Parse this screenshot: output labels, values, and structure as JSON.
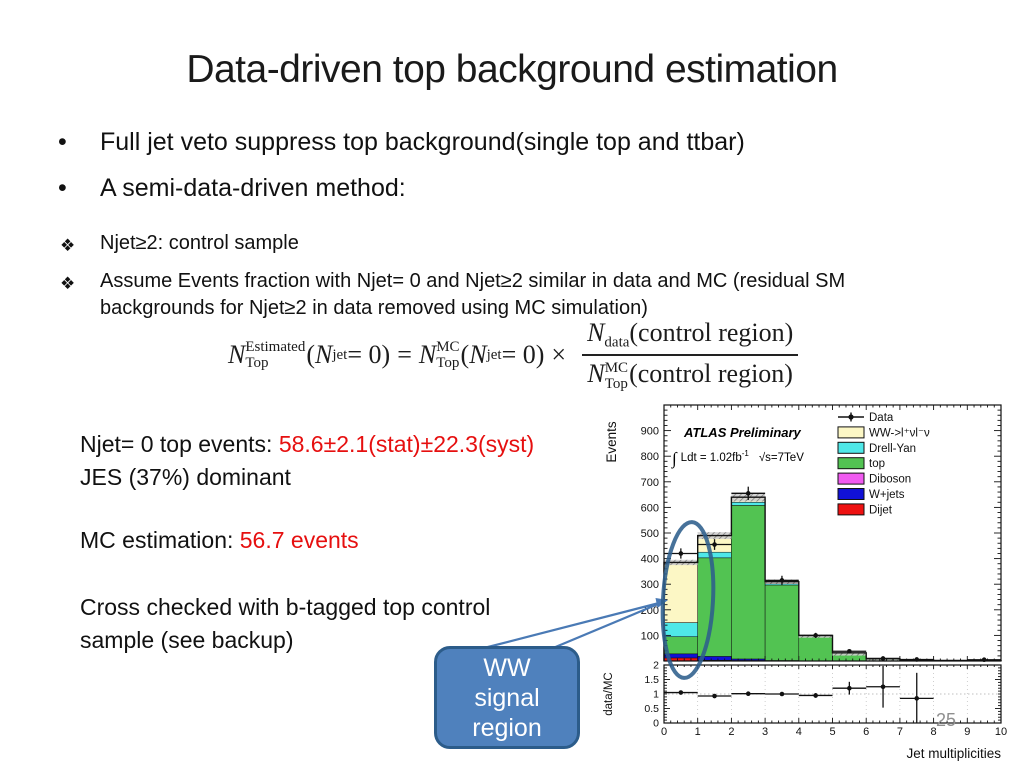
{
  "slide": {
    "title": "Data-driven top background estimation",
    "page_number": "25",
    "bullet_marker": "•",
    "sub_bullet_marker": "❖",
    "bullets": [
      "Full jet veto suppress top background(single top and ttbar)",
      "A semi-data-driven method:"
    ],
    "sub_bullets": [
      "Njet≥2: control sample",
      "Assume Events fraction with Njet= 0 and Njet≥2 similar in data and MC (residual SM backgrounds for Njet≥2 in data removed using MC simulation)"
    ]
  },
  "formula": {
    "lhs": {
      "base": "N",
      "sup": "Estimated",
      "sub": "Top"
    },
    "arg": {
      "pre": "(",
      "base": "N",
      "sub": "jet",
      "post": " = 0)"
    },
    "equals": "=",
    "rhs": {
      "base": "N",
      "sup": "MC",
      "sub": "Top"
    },
    "times": "×",
    "num": {
      "base": "N",
      "sub": "data"
    },
    "den": {
      "base": "N",
      "sup": "MC",
      "sub": "Top"
    },
    "region_text": "(control region)"
  },
  "results": {
    "line1_label": "Njet= 0 top events: ",
    "line1_value": "58.6±2.1(stat)±22.3(syst)",
    "line2": "JES (37%) dominant",
    "line3_label": "MC estimation: ",
    "line3_value": "56.7 events",
    "line4a": "Cross checked with b-tagged top control",
    "line4b": "sample (see backup)",
    "highlight_color": "#e60f0f"
  },
  "annotation": {
    "callout_lines": [
      "WW",
      "signal",
      "region"
    ],
    "box_fill": "#4f81bd",
    "box_border": "#2c5c8a",
    "arrow_color": "#4a7ab5",
    "ellipse_color": "#2e5e8c"
  },
  "chart_data": {
    "type": "bar",
    "stacked": true,
    "atlas_label": "ATLAS Preliminary",
    "lumi_integral": "∫",
    "lumi_text": "Ldt = 1.02fb",
    "lumi_sup": "-1",
    "energy_text": "√s=7TeV",
    "ylabel": "Events",
    "xlabel": "Jet multiplicities",
    "ratio_ylabel": "data/MC",
    "xlim": [
      0,
      10
    ],
    "ylim": [
      0,
      1000
    ],
    "yticks": [
      100,
      200,
      300,
      400,
      500,
      600,
      700,
      800,
      900
    ],
    "xticks": [
      0,
      1,
      2,
      3,
      4,
      5,
      6,
      7,
      8,
      9,
      10
    ],
    "ratio_ylim": [
      0,
      2
    ],
    "ratio_yticks": [
      0,
      0.5,
      1,
      1.5,
      2
    ],
    "bin_edges": [
      0,
      1,
      2,
      3,
      4,
      5,
      6,
      7,
      8,
      9,
      10
    ],
    "series": [
      {
        "name": "Dijet",
        "color": "#ee1111",
        "values": [
          12,
          3,
          2,
          0,
          0,
          0,
          0,
          0,
          0,
          0
        ]
      },
      {
        "name": "W+jets",
        "color": "#1111d6",
        "values": [
          16,
          15,
          6,
          2,
          0,
          0,
          0,
          0,
          0,
          0
        ]
      },
      {
        "name": "top",
        "color": "#52c352",
        "values": [
          67,
          385,
          600,
          295,
          96,
          30,
          9,
          4,
          2,
          1
        ]
      },
      {
        "name": "Drell-Yan",
        "color": "#4fe8e8",
        "values": [
          55,
          22,
          12,
          5,
          2,
          1,
          0,
          0,
          0,
          0
        ]
      },
      {
        "name": "WW->l⁺νl⁻ν",
        "color": "#fcf7c5",
        "values": [
          235,
          65,
          20,
          8,
          2,
          1,
          0,
          0,
          0,
          0
        ]
      }
    ],
    "legend": [
      {
        "label": "Data",
        "type": "marker"
      },
      {
        "label": "WW->l⁺νl⁻ν",
        "color": "#fcf7c5"
      },
      {
        "label": "Drell-Yan",
        "color": "#4fe8e8"
      },
      {
        "label": "top",
        "color": "#52c352"
      },
      {
        "label": "Diboson",
        "color": "#f05af0"
      },
      {
        "label": "W+jets",
        "color": "#1111d6"
      },
      {
        "label": "Dijet",
        "color": "#ee1111"
      }
    ],
    "data_points": [
      {
        "x": 0.5,
        "y": 420,
        "ey": 20
      },
      {
        "x": 1.5,
        "y": 455,
        "ey": 21
      },
      {
        "x": 2.5,
        "y": 655,
        "ey": 26
      },
      {
        "x": 3.5,
        "y": 315,
        "ey": 18
      },
      {
        "x": 4.5,
        "y": 100,
        "ey": 10
      },
      {
        "x": 5.5,
        "y": 38,
        "ey": 7
      },
      {
        "x": 6.5,
        "y": 10,
        "ey": 4
      },
      {
        "x": 7.5,
        "y": 6,
        "ey": 3
      },
      {
        "x": 9.5,
        "y": 5,
        "ey": 3
      }
    ],
    "ratio_points": [
      {
        "x": 0.5,
        "y": 1.05,
        "ey": 0.07
      },
      {
        "x": 1.5,
        "y": 0.93,
        "ey": 0.05
      },
      {
        "x": 2.5,
        "y": 1.01,
        "ey": 0.05
      },
      {
        "x": 3.5,
        "y": 1.0,
        "ey": 0.06
      },
      {
        "x": 4.5,
        "y": 0.95,
        "ey": 0.08
      },
      {
        "x": 5.5,
        "y": 1.2,
        "ey": 0.22
      },
      {
        "x": 6.5,
        "y": 1.25,
        "ey": 0.72
      },
      {
        "x": 7.5,
        "y": 0.85,
        "ey": 0.88
      }
    ]
  }
}
